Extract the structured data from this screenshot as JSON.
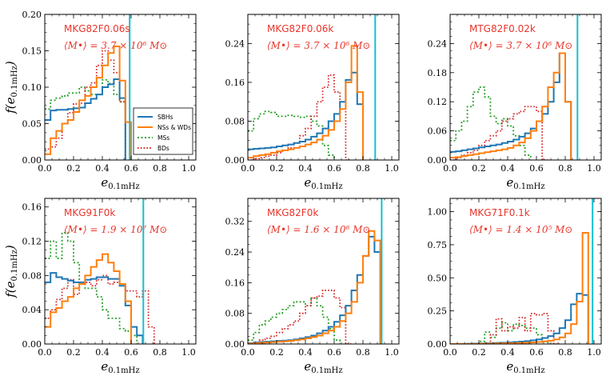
{
  "colors": {
    "SBHs": "#1f77b4",
    "NSs & WDs": "#ff7f0e",
    "MSs": "#2ca02c",
    "BDs": "#d62728",
    "vline": "#17becf",
    "annotation": "#e8352b"
  },
  "chart_data": [
    {
      "type": "line",
      "title": "MKG82F0.06s",
      "mass_label": "⟨M•⟩ = 3.7 × 10⁶ M⊙",
      "xlabel": "e",
      "xlabel_sub": "0.1mHz",
      "ylabel": "f(e",
      "ylabel_sub": "0.1mHz",
      "xlim": [
        0,
        1.05
      ],
      "ylim": [
        0,
        0.2
      ],
      "xticks": [
        "0.0",
        "0.2",
        "0.4",
        "0.6",
        "0.8",
        "1.0"
      ],
      "yticks": [
        "0.00",
        "0.05",
        "0.10",
        "0.15",
        "0.20"
      ],
      "ytick_values": [
        0,
        0.05,
        0.1,
        0.15,
        0.2
      ],
      "vline": 0.59,
      "legend": {
        "position": "lower-right",
        "entries": [
          "SBHs",
          "NSs & WDs",
          "MSs",
          "BDs"
        ]
      },
      "series": [
        {
          "name": "SBHs",
          "x_start": 0.0,
          "bin_width": 0.04,
          "values": [
            0.055,
            0.068,
            0.069,
            0.069,
            0.07,
            0.071,
            0.072,
            0.078,
            0.084,
            0.09,
            0.1,
            0.104,
            0.111,
            0.085
          ]
        },
        {
          "name": "NSs & WDs",
          "x_start": 0.0,
          "bin_width": 0.04,
          "values": [
            0.008,
            0.03,
            0.04,
            0.05,
            0.055,
            0.066,
            0.082,
            0.088,
            0.1,
            0.113,
            0.13,
            0.147,
            0.156,
            0.109,
            0.052
          ]
        },
        {
          "name": "MSs",
          "x_start": 0.0,
          "bin_width": 0.04,
          "values": [
            0.07,
            0.082,
            0.085,
            0.088,
            0.092,
            0.092,
            0.1,
            0.095,
            0.09,
            0.09,
            0.11,
            0.105,
            0.09,
            0.08
          ]
        },
        {
          "name": "BDs",
          "x_start": 0.0,
          "bin_width": 0.04,
          "values": [
            0.015,
            0.018,
            0.03,
            0.05,
            0.065,
            0.077,
            0.078,
            0.1,
            0.106,
            0.13,
            0.15,
            0.137,
            0.12,
            0.08
          ]
        }
      ]
    },
    {
      "type": "line",
      "title": "MKG82F0.06k",
      "mass_label": "⟨M•⟩ = 3.7 × 10⁶ M⊙",
      "xlabel": "e",
      "xlabel_sub": "0.1mHz",
      "ylabel": "",
      "ylabel_sub": "",
      "xlim": [
        0,
        1.05
      ],
      "ylim": [
        0,
        0.3
      ],
      "xticks": [
        "0.0",
        "0.2",
        "0.4",
        "0.6",
        "0.8",
        "1.0"
      ],
      "yticks": [
        "0.00",
        "0.08",
        "0.16",
        "0.24"
      ],
      "ytick_values": [
        0,
        0.08,
        0.16,
        0.24
      ],
      "vline": 0.885,
      "series": [
        {
          "name": "SBHs",
          "x_start": 0.0,
          "bin_width": 0.04,
          "values": [
            0.022,
            0.023,
            0.024,
            0.025,
            0.026,
            0.028,
            0.03,
            0.032,
            0.035,
            0.038,
            0.042,
            0.048,
            0.055,
            0.065,
            0.08,
            0.095,
            0.12,
            0.165,
            0.18,
            0.115
          ]
        },
        {
          "name": "NSs & WDs",
          "x_start": 0.0,
          "bin_width": 0.04,
          "values": [
            0.005,
            0.008,
            0.01,
            0.012,
            0.015,
            0.018,
            0.02,
            0.022,
            0.025,
            0.028,
            0.032,
            0.036,
            0.042,
            0.05,
            0.062,
            0.08,
            0.105,
            0.16,
            0.235,
            0.14
          ]
        },
        {
          "name": "MSs",
          "x_start": 0.0,
          "bin_width": 0.04,
          "values": [
            0.06,
            0.085,
            0.095,
            0.1,
            0.098,
            0.09,
            0.09,
            0.092,
            0.09,
            0.088,
            0.09,
            0.08,
            0.07,
            0.03,
            0.01
          ]
        },
        {
          "name": "BDs",
          "x_start": 0.0,
          "bin_width": 0.04,
          "values": [
            0.0,
            0.003,
            0.005,
            0.008,
            0.01,
            0.015,
            0.02,
            0.025,
            0.035,
            0.05,
            0.065,
            0.09,
            0.12,
            0.15,
            0.175,
            0.14,
            0.12,
            0.0
          ]
        }
      ]
    },
    {
      "type": "line",
      "title": "MTG82F0.02k",
      "mass_label": "⟨M•⟩ = 3.7 × 10⁶ M⊙",
      "xlabel": "e",
      "xlabel_sub": "0.1mHz",
      "ylabel": "",
      "ylabel_sub": "",
      "xlim": [
        0,
        1.05
      ],
      "ylim": [
        0,
        0.3
      ],
      "xticks": [
        "0.0",
        "0.2",
        "0.4",
        "0.6",
        "0.8",
        "1.0"
      ],
      "yticks": [
        "0.00",
        "0.06",
        "0.12",
        "0.18",
        "0.24"
      ],
      "ytick_values": [
        0,
        0.06,
        0.12,
        0.18,
        0.24
      ],
      "vline": 0.885,
      "series": [
        {
          "name": "SBHs",
          "x_start": 0.0,
          "bin_width": 0.04,
          "values": [
            0.017,
            0.018,
            0.02,
            0.022,
            0.024,
            0.026,
            0.028,
            0.03,
            0.032,
            0.035,
            0.038,
            0.042,
            0.048,
            0.055,
            0.065,
            0.08,
            0.095,
            0.12,
            0.16,
            0.22,
            0.12
          ]
        },
        {
          "name": "NSs & WDs",
          "x_start": 0.0,
          "bin_width": 0.04,
          "values": [
            0.005,
            0.006,
            0.008,
            0.01,
            0.012,
            0.014,
            0.016,
            0.018,
            0.02,
            0.022,
            0.025,
            0.03,
            0.036,
            0.045,
            0.06,
            0.08,
            0.11,
            0.15,
            0.18,
            0.22,
            0.12
          ]
        },
        {
          "name": "MSs",
          "x_start": 0.0,
          "bin_width": 0.04,
          "values": [
            0.04,
            0.06,
            0.08,
            0.11,
            0.14,
            0.15,
            0.13,
            0.09,
            0.075,
            0.085,
            0.07,
            0.05,
            0.03,
            0.01
          ]
        },
        {
          "name": "BDs",
          "x_start": 0.0,
          "bin_width": 0.04,
          "values": [
            0.0,
            0.005,
            0.01,
            0.015,
            0.02,
            0.03,
            0.04,
            0.05,
            0.06,
            0.08,
            0.085,
            0.095,
            0.1,
            0.11,
            0.11,
            0.1,
            0.0
          ]
        }
      ]
    },
    {
      "type": "line",
      "title": "MKG91F0k",
      "mass_label": "⟨M•⟩ = 1.9 × 10⁷ M⊙",
      "xlabel": "e",
      "xlabel_sub": "0.1mHz",
      "ylabel": "f(e",
      "ylabel_sub": "0.1mHz",
      "xlim": [
        0,
        1.05
      ],
      "ylim": [
        0,
        0.17
      ],
      "xticks": [
        "0.0",
        "0.2",
        "0.4",
        "0.6",
        "0.8",
        "1.0"
      ],
      "yticks": [
        "0.00",
        "0.04",
        "0.08",
        "0.12",
        "0.16"
      ],
      "ytick_values": [
        0,
        0.04,
        0.08,
        0.12,
        0.16
      ],
      "vline": 0.685,
      "series": [
        {
          "name": "SBHs",
          "x_start": 0.0,
          "bin_width": 0.04,
          "values": [
            0.072,
            0.083,
            0.078,
            0.076,
            0.074,
            0.072,
            0.072,
            0.075,
            0.076,
            0.078,
            0.078,
            0.076,
            0.076,
            0.068,
            0.045,
            0.02,
            0.01
          ]
        },
        {
          "name": "NSs & WDs",
          "x_start": 0.0,
          "bin_width": 0.04,
          "values": [
            0.02,
            0.037,
            0.042,
            0.05,
            0.055,
            0.065,
            0.07,
            0.08,
            0.09,
            0.098,
            0.105,
            0.095,
            0.085,
            0.07,
            0.05
          ]
        },
        {
          "name": "MSs",
          "x_start": 0.0,
          "bin_width": 0.04,
          "values": [
            0.1,
            0.12,
            0.1,
            0.13,
            0.12,
            0.095,
            0.07,
            0.065,
            0.065,
            0.055,
            0.04,
            0.03,
            0.03,
            0.018,
            0.015,
            0.01
          ]
        },
        {
          "name": "BDs",
          "x_start": 0.0,
          "bin_width": 0.04,
          "values": [
            0.03,
            0.04,
            0.052,
            0.065,
            0.075,
            0.058,
            0.07,
            0.072,
            0.068,
            0.075,
            0.08,
            0.07,
            0.072,
            0.07,
            0.062,
            0.062,
            0.055,
            0.062,
            0.02
          ]
        }
      ]
    },
    {
      "type": "line",
      "title": "MKG82F0k",
      "mass_label": "⟨M•⟩ = 1.6 × 10⁶ M⊙",
      "xlabel": "e",
      "xlabel_sub": "0.1mHz",
      "ylabel": "",
      "ylabel_sub": "",
      "xlim": [
        0,
        1.05
      ],
      "ylim": [
        0,
        0.38
      ],
      "xticks": [
        "0.0",
        "0.2",
        "0.4",
        "0.6",
        "0.8",
        "1.0"
      ],
      "yticks": [
        "0.00",
        "0.08",
        "0.16",
        "0.24",
        "0.32"
      ],
      "ytick_values": [
        0,
        0.08,
        0.16,
        0.24,
        0.32
      ],
      "vline": 0.93,
      "series": [
        {
          "name": "SBHs",
          "x_start": 0.0,
          "bin_width": 0.04,
          "values": [
            0.002,
            0.004,
            0.005,
            0.006,
            0.007,
            0.008,
            0.009,
            0.01,
            0.012,
            0.015,
            0.018,
            0.022,
            0.028,
            0.035,
            0.045,
            0.058,
            0.075,
            0.1,
            0.14,
            0.18,
            0.23,
            0.28,
            0.24
          ]
        },
        {
          "name": "NSs & WDs",
          "x_start": 0.0,
          "bin_width": 0.04,
          "values": [
            0.001,
            0.002,
            0.003,
            0.004,
            0.005,
            0.006,
            0.007,
            0.008,
            0.01,
            0.012,
            0.015,
            0.018,
            0.022,
            0.028,
            0.035,
            0.045,
            0.06,
            0.08,
            0.11,
            0.16,
            0.23,
            0.295,
            0.27
          ]
        },
        {
          "name": "MSs",
          "x_start": 0.0,
          "bin_width": 0.04,
          "values": [
            0.01,
            0.03,
            0.05,
            0.06,
            0.07,
            0.08,
            0.09,
            0.1,
            0.11,
            0.11,
            0.1,
            0.12,
            0.1,
            0.07,
            0.04,
            0.01
          ]
        },
        {
          "name": "BDs",
          "x_start": 0.0,
          "bin_width": 0.04,
          "values": [
            0.0,
            0.005,
            0.01,
            0.015,
            0.02,
            0.03,
            0.04,
            0.05,
            0.06,
            0.08,
            0.1,
            0.12,
            0.125,
            0.14,
            0.14,
            0.12,
            0.095,
            0.0
          ]
        }
      ]
    },
    {
      "type": "line",
      "title": "MKG71F0.1k",
      "mass_label": "⟨M•⟩ = 1.4 × 10⁵ M⊙",
      "xlabel": "e",
      "xlabel_sub": "0.1mHz",
      "ylabel": "",
      "ylabel_sub": "",
      "xlim": [
        0,
        1.05
      ],
      "ylim": [
        0,
        1.1
      ],
      "xticks": [
        "0.0",
        "0.2",
        "0.4",
        "0.6",
        "0.8",
        "1.0"
      ],
      "yticks": [
        "0.00",
        "0.25",
        "0.50",
        "0.75",
        "1.00"
      ],
      "ytick_values": [
        0,
        0.25,
        0.5,
        0.75,
        1.0
      ],
      "vline": 0.99,
      "series": [
        {
          "name": "SBHs",
          "x_start": 0.0,
          "bin_width": 0.04,
          "values": [
            0.0,
            0.001,
            0.001,
            0.002,
            0.003,
            0.004,
            0.005,
            0.006,
            0.008,
            0.01,
            0.012,
            0.015,
            0.018,
            0.022,
            0.028,
            0.035,
            0.045,
            0.06,
            0.08,
            0.12,
            0.18,
            0.3,
            0.38,
            0.37
          ]
        },
        {
          "name": "NSs & WDs",
          "x_start": 0.0,
          "bin_width": 0.04,
          "values": [
            0.0,
            0.0,
            0.0,
            0.001,
            0.001,
            0.002,
            0.002,
            0.003,
            0.004,
            0.005,
            0.006,
            0.007,
            0.008,
            0.01,
            0.012,
            0.015,
            0.02,
            0.025,
            0.035,
            0.05,
            0.08,
            0.15,
            0.32,
            0.84
          ]
        },
        {
          "name": "MSs",
          "x_start": 0.0,
          "bin_width": 0.04,
          "values": [
            0.0,
            0.0,
            0.0,
            0.0,
            0.0,
            0.02,
            0.09,
            0.05,
            0.12,
            0.16,
            0.1,
            0.15,
            0.14,
            0.12,
            0.12,
            0.07,
            0.02,
            0.0
          ]
        },
        {
          "name": "BDs",
          "x_start": 0.0,
          "bin_width": 0.04,
          "values": [
            0.0,
            0.0,
            0.0,
            0.0,
            0.0,
            0.0,
            0.0,
            0.07,
            0.19,
            0.1,
            0.13,
            0.12,
            0.2,
            0.1,
            0.23,
            0.22,
            0.23,
            0.1,
            0.0
          ]
        }
      ]
    }
  ]
}
